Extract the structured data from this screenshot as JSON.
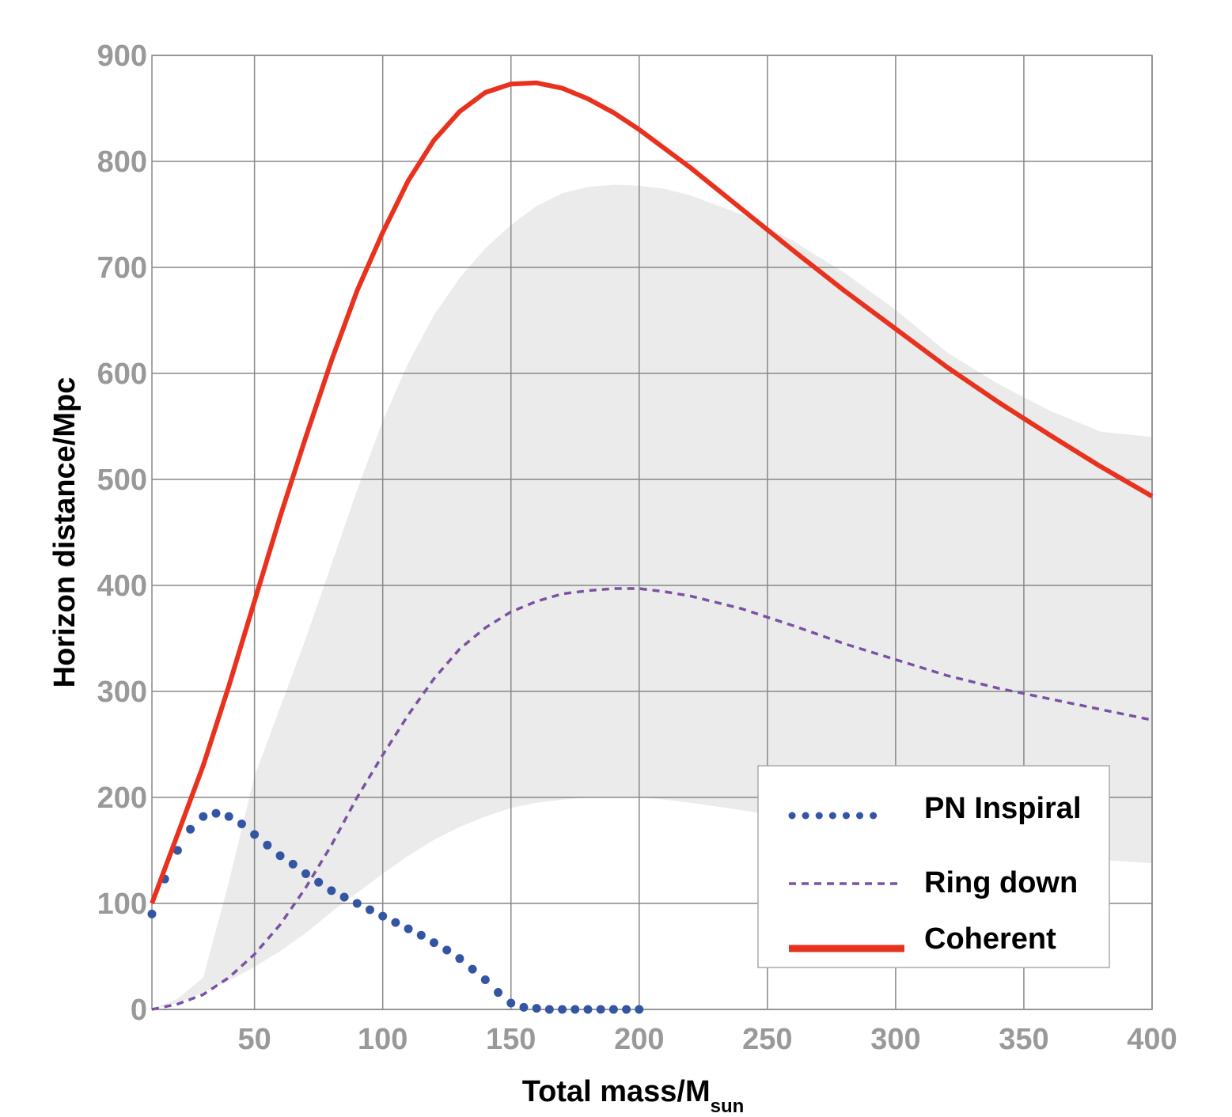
{
  "chart_data": {
    "type": "line",
    "xlabel": "Total mass/M",
    "xlabel_subscript": "sun",
    "ylabel": "Horizon distance/Mpc",
    "xlim": [
      10,
      400
    ],
    "ylim": [
      0,
      900
    ],
    "x_ticks": [
      50,
      100,
      150,
      200,
      250,
      300,
      350,
      400
    ],
    "y_ticks": [
      0,
      100,
      200,
      300,
      400,
      500,
      600,
      700,
      800,
      900
    ],
    "grid": true,
    "legend_position": "bottom-right",
    "band": {
      "x": [
        10,
        20,
        30,
        40,
        50,
        60,
        70,
        80,
        90,
        100,
        110,
        120,
        130,
        140,
        150,
        160,
        170,
        180,
        190,
        200,
        210,
        220,
        240,
        260,
        280,
        300,
        320,
        340,
        360,
        380,
        400
      ],
      "upper": [
        0,
        10,
        30,
        120,
        220,
        285,
        350,
        420,
        490,
        555,
        610,
        655,
        690,
        718,
        740,
        758,
        770,
        776,
        778,
        777,
        774,
        768,
        750,
        725,
        695,
        660,
        620,
        590,
        565,
        545,
        540
      ],
      "lower": [
        0,
        6,
        16,
        27,
        40,
        55,
        72,
        92,
        110,
        128,
        145,
        160,
        172,
        182,
        190,
        195,
        198,
        200,
        200,
        200,
        198,
        195,
        188,
        180,
        170,
        162,
        155,
        150,
        145,
        141,
        138
      ],
      "color": "#ebebeb"
    },
    "series": [
      {
        "name": "PN Inspiral",
        "style": "dotted",
        "color": "#3355a4",
        "x": [
          10,
          15,
          20,
          25,
          30,
          35,
          40,
          45,
          50,
          55,
          60,
          65,
          70,
          75,
          80,
          85,
          90,
          95,
          100,
          105,
          110,
          115,
          120,
          125,
          130,
          135,
          140,
          145,
          150,
          155,
          160,
          165,
          170,
          175,
          180,
          185,
          190,
          195,
          200
        ],
        "y": [
          90,
          123,
          150,
          170,
          182,
          185,
          182,
          175,
          165,
          155,
          145,
          137,
          128,
          120,
          112,
          106,
          100,
          94,
          88,
          82,
          76,
          70,
          63,
          56,
          48,
          38,
          28,
          16,
          6,
          2,
          1,
          0,
          0,
          0,
          0,
          0,
          0,
          0,
          0
        ]
      },
      {
        "name": "Ring down",
        "style": "dashed",
        "color": "#7b52a3",
        "x": [
          10,
          20,
          30,
          40,
          50,
          60,
          70,
          80,
          90,
          100,
          110,
          120,
          130,
          140,
          150,
          160,
          170,
          180,
          190,
          200,
          210,
          220,
          240,
          260,
          280,
          300,
          320,
          340,
          360,
          380,
          400
        ],
        "y": [
          0,
          5,
          14,
          30,
          52,
          80,
          115,
          155,
          200,
          240,
          278,
          312,
          340,
          360,
          375,
          385,
          392,
          395,
          397,
          397,
          394,
          390,
          378,
          362,
          345,
          330,
          315,
          303,
          293,
          283,
          273
        ]
      },
      {
        "name": "Coherent",
        "style": "solid",
        "color": "#e8321e",
        "x": [
          10,
          20,
          30,
          40,
          50,
          60,
          70,
          80,
          90,
          100,
          110,
          120,
          130,
          140,
          150,
          160,
          170,
          180,
          190,
          200,
          210,
          220,
          240,
          260,
          280,
          300,
          320,
          340,
          360,
          380,
          400
        ],
        "y": [
          100,
          165,
          230,
          305,
          385,
          465,
          540,
          612,
          678,
          733,
          782,
          820,
          847,
          865,
          873,
          874,
          869,
          859,
          846,
          830,
          812,
          794,
          755,
          716,
          678,
          642,
          606,
          573,
          542,
          512,
          484
        ]
      }
    ]
  }
}
